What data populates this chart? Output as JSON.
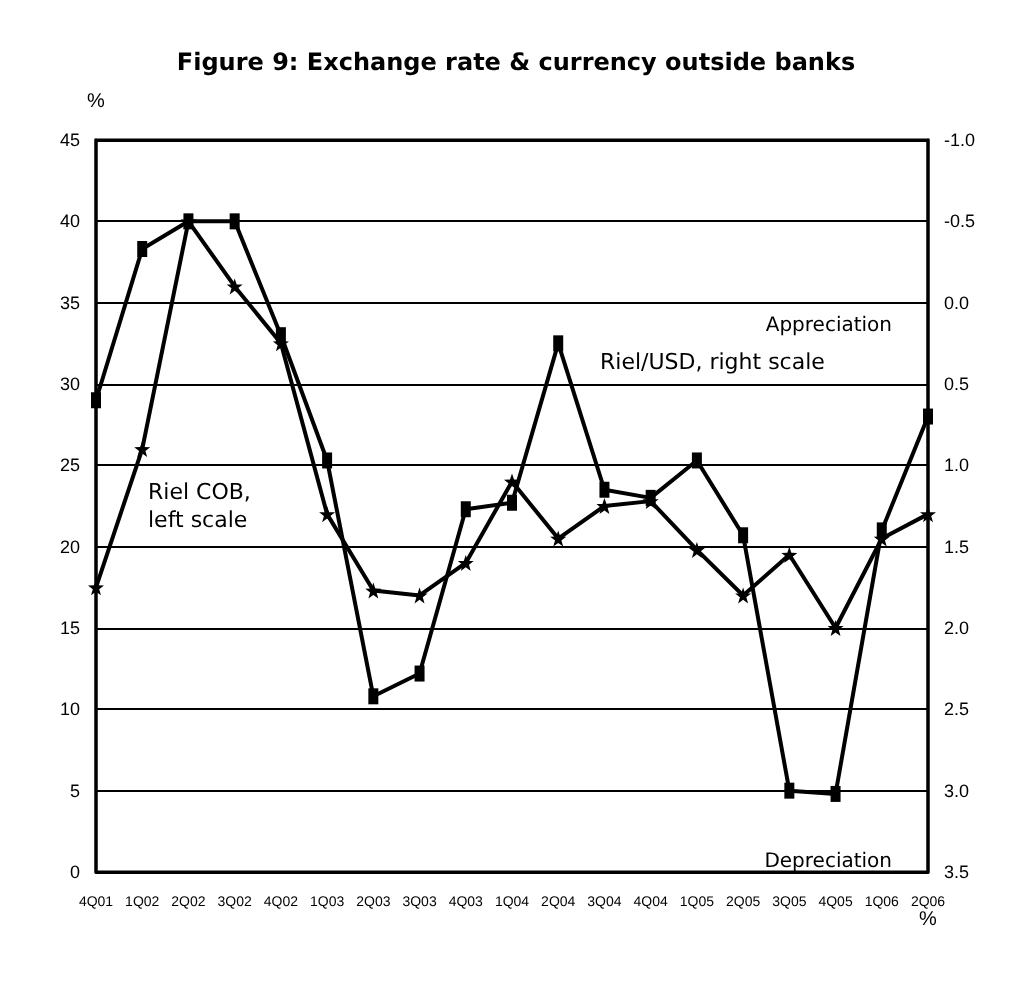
{
  "chart_data": {
    "type": "line",
    "title": "Figure 9: Exchange rate & currency outside banks",
    "categories": [
      "4Q01",
      "1Q02",
      "2Q02",
      "3Q02",
      "4Q02",
      "1Q03",
      "2Q03",
      "3Q03",
      "4Q03",
      "1Q04",
      "2Q04",
      "3Q04",
      "4Q04",
      "1Q05",
      "2Q05",
      "3Q05",
      "4Q05",
      "1Q06",
      "2Q06"
    ],
    "series": [
      {
        "name": "Riel COB, left scale",
        "color": "#000000",
        "marker": "star",
        "values": [
          17.5,
          26,
          40,
          36,
          32.5,
          22,
          17.3,
          17,
          19,
          24,
          20.5,
          22.5,
          22.8,
          19.8,
          17,
          19.5,
          15,
          20.5,
          22
        ]
      },
      {
        "name": "Riel/USD, right scale",
        "color": "#000000",
        "marker": "square",
        "axis": "y2",
        "values": [
          0.6,
          -0.33,
          -0.5,
          -0.5,
          0.2,
          0.97,
          2.42,
          2.28,
          1.27,
          1.23,
          0.25,
          1.15,
          1.2,
          0.97,
          1.43,
          3.0,
          3.02,
          1.4,
          0.7
        ]
      }
    ],
    "ylabel": "%",
    "y2label": "%",
    "ylim": [
      0,
      45
    ],
    "yticks": [
      0,
      5,
      10,
      15,
      20,
      25,
      30,
      35,
      40,
      45
    ],
    "y2lim": [
      3.5,
      -1.0
    ],
    "y2ticks": [
      {
        "value": -1.0,
        "label": "-1.0"
      },
      {
        "value": -0.5,
        "label": "-0.5"
      },
      {
        "value": 0,
        "label": "0.0"
      },
      {
        "value": 0.5,
        "label": "0.5"
      },
      {
        "value": 1.0,
        "label": "1.0"
      },
      {
        "value": 1.5,
        "label": "1.5"
      },
      {
        "value": 2.0,
        "label": "2.0"
      },
      {
        "value": 2.5,
        "label": "2.5"
      },
      {
        "value": 3.0,
        "label": "3.0"
      },
      {
        "value": 3.5,
        "label": "3.5"
      }
    ],
    "annotations": [
      "Appreciation",
      "Depreciation"
    ],
    "grid": "y",
    "line_style": "solid"
  }
}
